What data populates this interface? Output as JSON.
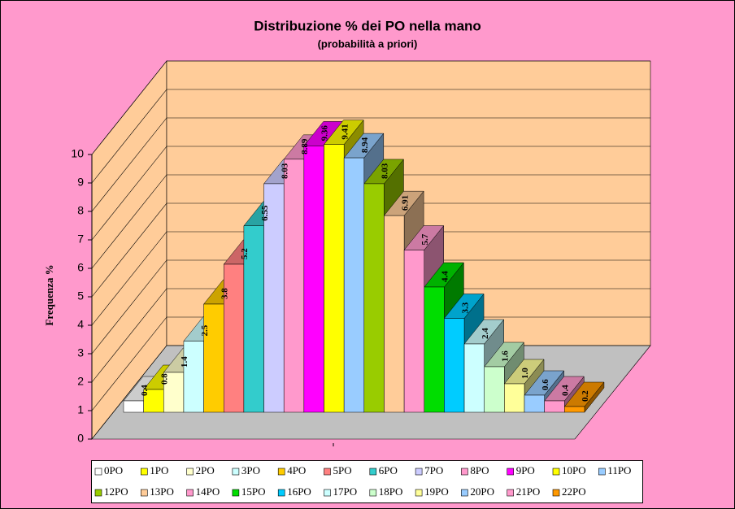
{
  "chart_data": {
    "type": "bar3d",
    "title": "Distribuzione % dei PO nella mano",
    "subtitle": "(probabilità a priori)",
    "y_label": "Frequenza %",
    "categories": [
      "0PO",
      "1PO",
      "2PO",
      "3PO",
      "4PO",
      "5PO",
      "6PO",
      "7PO",
      "8PO",
      "9PO",
      "10PO",
      "11PO",
      "12PO",
      "13PO",
      "14PO",
      "15PO",
      "16PO",
      "17PO",
      "18PO",
      "19PO",
      "20PO",
      "21PO",
      "22PO"
    ],
    "values": [
      0.4,
      0.8,
      1.4,
      2.5,
      3.8,
      5.2,
      6.55,
      8.03,
      8.89,
      9.36,
      9.41,
      8.94,
      8.03,
      6.91,
      5.7,
      4.4,
      3.3,
      2.4,
      1.6,
      1.0,
      0.6,
      0.4,
      0.2
    ],
    "value_labels": [
      "0.4",
      "0.8",
      "1.4",
      "2.5",
      "3.8",
      "5.2",
      "6.55",
      "8.03",
      "8.89",
      "9.36",
      "9.41",
      "8.94",
      "8.03",
      "6.91",
      "5.7",
      "4.4",
      "3.3",
      "2.4",
      "1.6",
      "1.0",
      "0.6",
      "0.4",
      "0.2"
    ],
    "colors": [
      "#ffffff",
      "#ffff00",
      "#ffffcc",
      "#ccffff",
      "#ffcc00",
      "#ff8080",
      "#33cccc",
      "#ccccff",
      "#ff99cc",
      "#ff00ff",
      "#ffff00",
      "#99ccff",
      "#99cc00",
      "#ffcc99",
      "#ff99cc",
      "#00dd00",
      "#00ccff",
      "#ccffff",
      "#ccffcc",
      "#ffff99",
      "#99ccff",
      "#ff99cc",
      "#ff9900"
    ],
    "ylim": [
      0,
      10
    ],
    "yticks": [
      0,
      1,
      2,
      3,
      4,
      5,
      6,
      7,
      8,
      9,
      10
    ],
    "grid": true
  }
}
